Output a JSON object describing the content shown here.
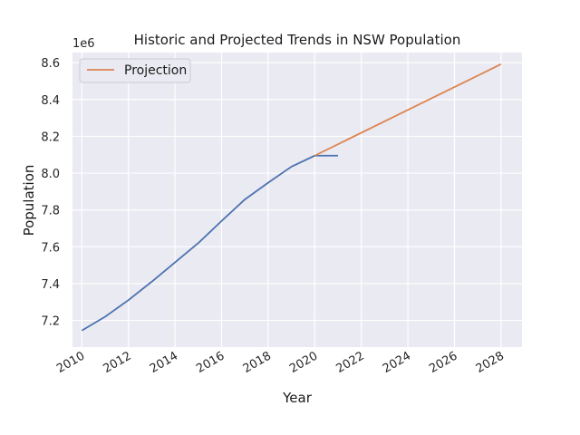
{
  "chart_data": {
    "type": "line",
    "title": "Historic and Projected Trends in NSW Population",
    "xlabel": "Year",
    "ylabel": "Population",
    "y_offset_label": "1e6",
    "xlim": [
      2009.6,
      2028.9
    ],
    "ylim": [
      7.055,
      8.655
    ],
    "x_ticks": [
      "2010",
      "2012",
      "2014",
      "2016",
      "2018",
      "2020",
      "2022",
      "2024",
      "2026",
      "2028"
    ],
    "y_ticks": [
      "7.2",
      "7.4",
      "7.6",
      "7.8",
      "8.0",
      "8.2",
      "8.4",
      "8.6"
    ],
    "grid": true,
    "legend_position": "top-left",
    "series": [
      {
        "name": "",
        "color": "#4c72b0",
        "x": [
          2010,
          2011,
          2012,
          2013,
          2014,
          2015,
          2016,
          2017,
          2018,
          2019,
          2020,
          2021
        ],
        "y": [
          7.145,
          7.22,
          7.31,
          7.41,
          7.515,
          7.62,
          7.74,
          7.857,
          7.948,
          8.035,
          8.095,
          8.095
        ]
      },
      {
        "name": "Projection",
        "color": "#dd8452",
        "x": [
          2020,
          2028
        ],
        "y": [
          8.095,
          8.592
        ]
      }
    ]
  }
}
